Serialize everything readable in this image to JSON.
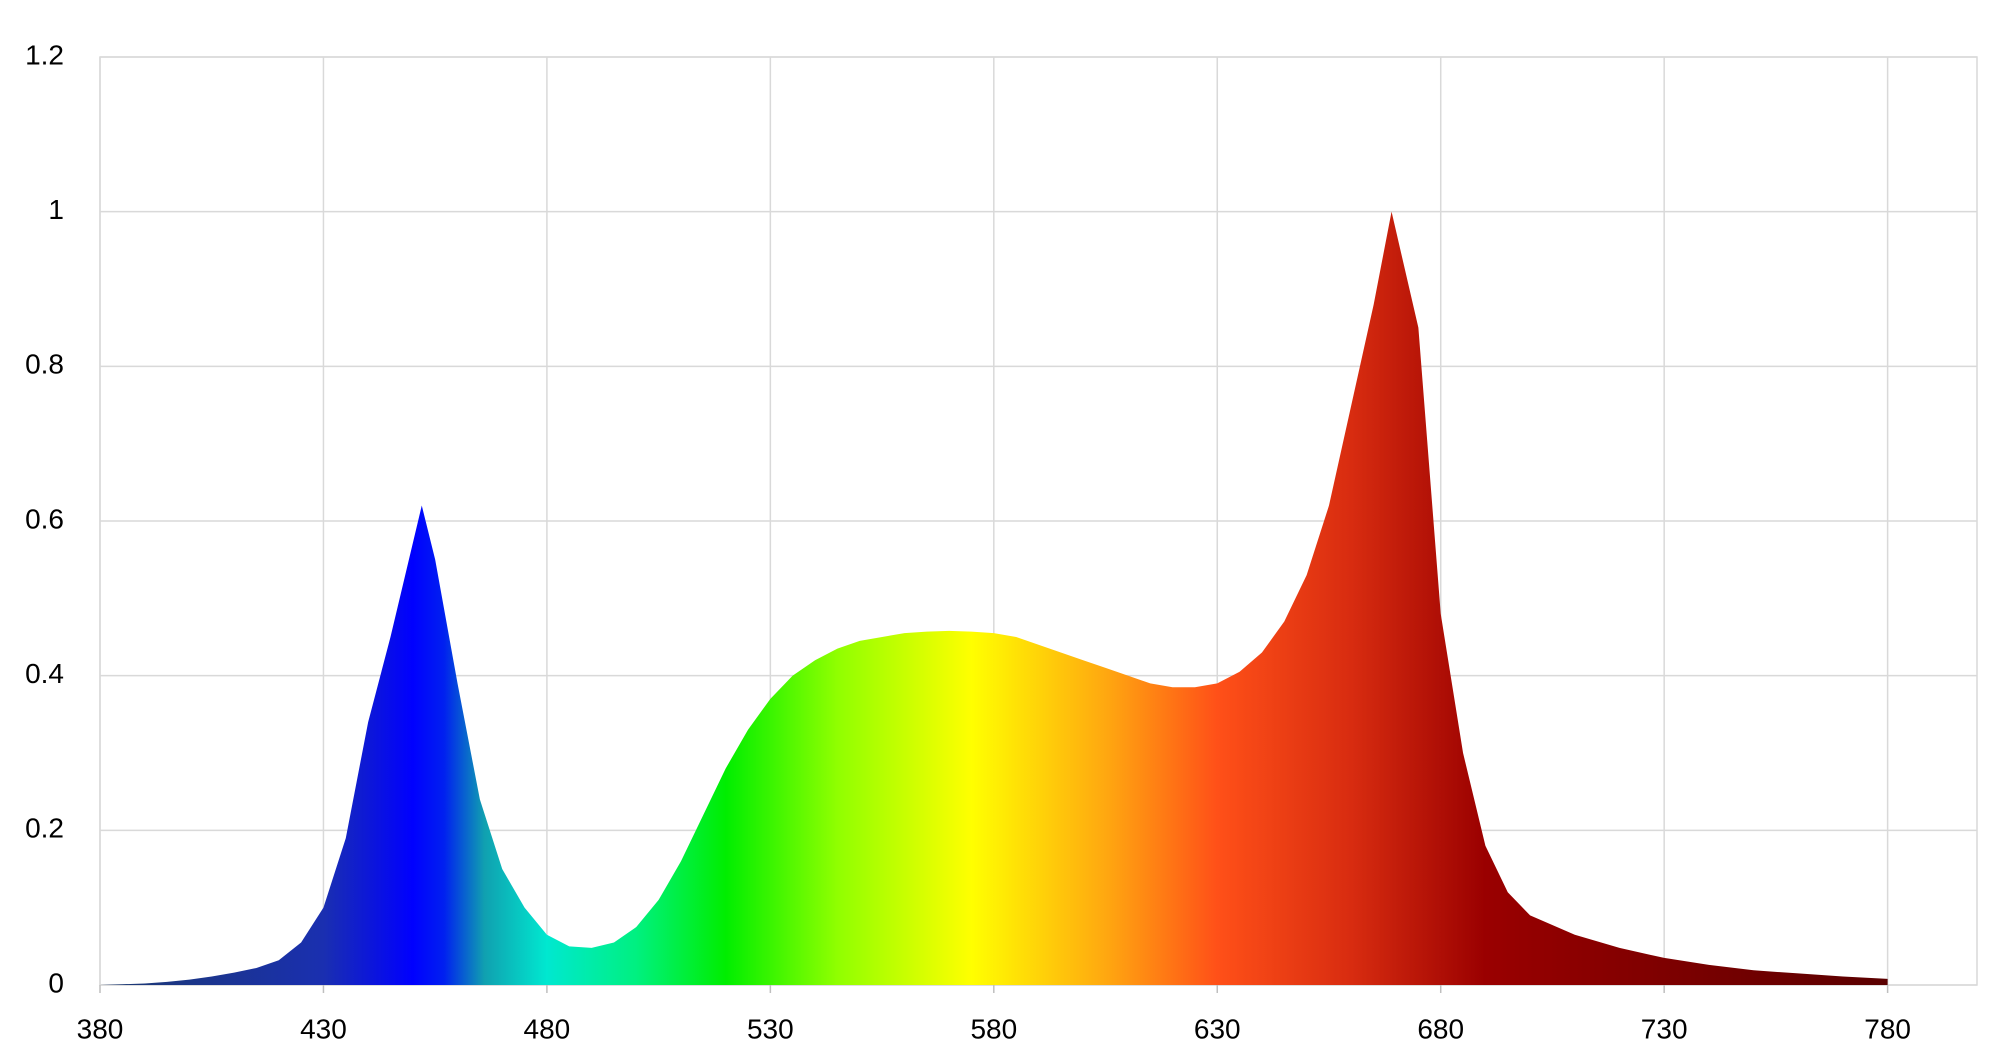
{
  "chart_data": {
    "type": "area",
    "x": [
      380,
      385,
      390,
      395,
      400,
      405,
      410,
      415,
      420,
      425,
      430,
      435,
      440,
      445,
      452,
      455,
      460,
      465,
      470,
      475,
      480,
      485,
      490,
      495,
      500,
      505,
      510,
      515,
      520,
      525,
      530,
      535,
      540,
      545,
      550,
      555,
      560,
      565,
      570,
      575,
      580,
      585,
      590,
      595,
      600,
      605,
      610,
      615,
      620,
      625,
      630,
      635,
      640,
      645,
      650,
      655,
      660,
      665,
      669,
      675,
      680,
      685,
      690,
      695,
      700,
      710,
      720,
      730,
      740,
      750,
      760,
      770,
      780
    ],
    "values": [
      0,
      0.001,
      0.002,
      0.004,
      0.007,
      0.011,
      0.016,
      0.022,
      0.032,
      0.055,
      0.1,
      0.19,
      0.34,
      0.45,
      0.62,
      0.55,
      0.39,
      0.24,
      0.15,
      0.1,
      0.065,
      0.05,
      0.048,
      0.055,
      0.075,
      0.11,
      0.16,
      0.22,
      0.28,
      0.33,
      0.37,
      0.4,
      0.42,
      0.435,
      0.445,
      0.45,
      0.455,
      0.457,
      0.458,
      0.457,
      0.455,
      0.45,
      0.44,
      0.43,
      0.42,
      0.41,
      0.4,
      0.39,
      0.385,
      0.385,
      0.39,
      0.405,
      0.43,
      0.47,
      0.53,
      0.62,
      0.75,
      0.88,
      1.0,
      0.85,
      0.48,
      0.3,
      0.18,
      0.12,
      0.09,
      0.065,
      0.048,
      0.035,
      0.026,
      0.019,
      0.015,
      0.011,
      0.008
    ],
    "colors": [
      {
        "x": 380,
        "color": "#1c3a6e"
      },
      {
        "x": 430,
        "color": "#1a2fb0"
      },
      {
        "x": 450,
        "color": "#0000ff"
      },
      {
        "x": 457,
        "color": "#0020f0"
      },
      {
        "x": 466,
        "color": "#10a0b0"
      },
      {
        "x": 480,
        "color": "#00e8d0"
      },
      {
        "x": 500,
        "color": "#00f080"
      },
      {
        "x": 520,
        "color": "#00ee00"
      },
      {
        "x": 545,
        "color": "#90ff00"
      },
      {
        "x": 575,
        "color": "#ffff00"
      },
      {
        "x": 605,
        "color": "#ffa810"
      },
      {
        "x": 630,
        "color": "#ff5018"
      },
      {
        "x": 660,
        "color": "#d82c10"
      },
      {
        "x": 690,
        "color": "#9a0000"
      },
      {
        "x": 780,
        "color": "#5a0000"
      }
    ],
    "xlim": [
      380,
      800
    ],
    "xticks": [
      380,
      430,
      480,
      530,
      580,
      630,
      680,
      730,
      780
    ],
    "ylim": [
      0,
      1.2
    ],
    "yticks": [
      0,
      0.2,
      0.4,
      0.6,
      0.8,
      1,
      1.2
    ],
    "grid": true
  }
}
